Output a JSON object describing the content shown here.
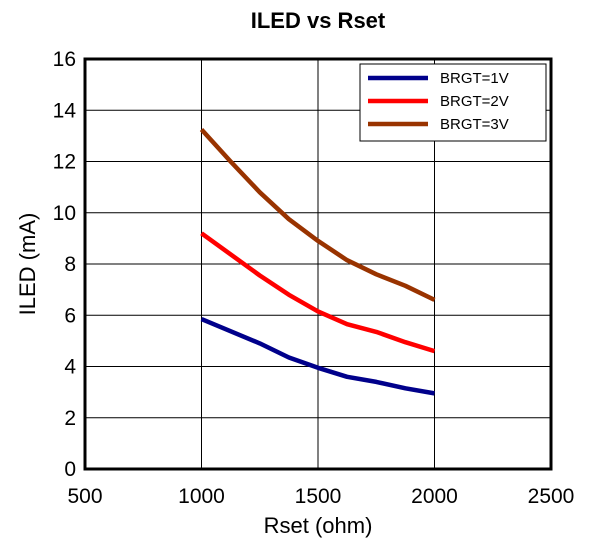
{
  "chart_data": {
    "type": "line",
    "title": "ILED vs Rset",
    "xlabel": "Rset (ohm)",
    "ylabel": "ILED (mA)",
    "xlim": [
      500,
      2500
    ],
    "ylim": [
      0,
      16
    ],
    "xticks": [
      500,
      1000,
      1500,
      2000,
      2500
    ],
    "yticks": [
      0,
      2,
      4,
      6,
      8,
      10,
      12,
      14,
      16
    ],
    "grid": true,
    "legend_position": "top-right",
    "series": [
      {
        "name": "BRGT=1V",
        "color": "#00008b",
        "x": [
          1000,
          1250,
          1375,
          1500,
          1625,
          1750,
          1875,
          2000
        ],
        "y": [
          5.85,
          4.9,
          4.35,
          3.95,
          3.6,
          3.4,
          3.15,
          2.95
        ]
      },
      {
        "name": "BRGT=2V",
        "color": "#ff0000",
        "x": [
          1000,
          1250,
          1375,
          1500,
          1625,
          1750,
          1875,
          2000
        ],
        "y": [
          9.2,
          7.55,
          6.8,
          6.15,
          5.65,
          5.35,
          4.95,
          4.6
        ]
      },
      {
        "name": "BRGT=3V",
        "color": "#993300",
        "x": [
          1000,
          1125,
          1250,
          1375,
          1500,
          1625,
          1750,
          1875,
          2000
        ],
        "y": [
          13.25,
          12.0,
          10.8,
          9.75,
          8.9,
          8.15,
          7.6,
          7.15,
          6.6
        ]
      }
    ]
  }
}
